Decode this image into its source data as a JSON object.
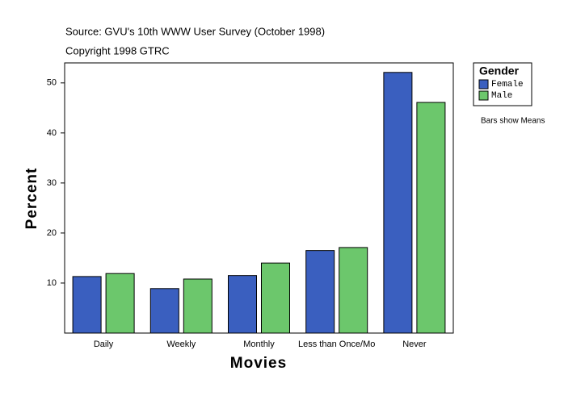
{
  "chart_data": {
    "type": "bar",
    "source": "Source: GVU's 10th WWW User Survey (October 1998)",
    "copyright": "Copyright 1998 GTRC",
    "note": "Bars show Means",
    "x_label": "Movies",
    "y_label": "Percent",
    "legend_title": "Gender",
    "categories": [
      "Daily",
      "Weekly",
      "Monthly",
      "Less than Once/Mo",
      "Never"
    ],
    "series": [
      {
        "name": "Female",
        "color": "#3a5fbf",
        "values": [
          11.3,
          8.9,
          11.5,
          16.5,
          52.1
        ]
      },
      {
        "name": "Male",
        "color": "#6cc76c",
        "values": [
          11.9,
          10.8,
          14.0,
          17.1,
          46.1
        ]
      }
    ],
    "ylim": [
      0,
      54
    ],
    "yticks": [
      10,
      20,
      30,
      40,
      50
    ]
  }
}
